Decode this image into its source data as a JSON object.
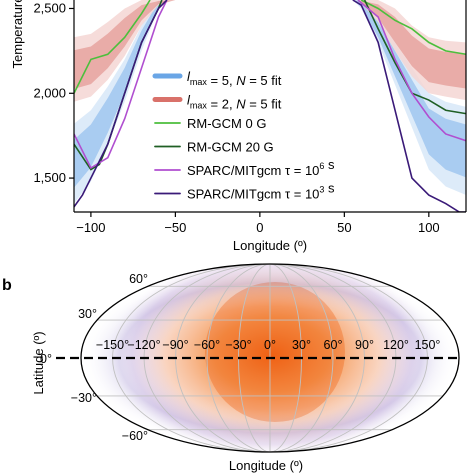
{
  "chart_data": [
    {
      "type": "line",
      "panel_label": "",
      "ylabel": "Temperature",
      "xlabel": "Longitude (º)",
      "xlim": [
        -110,
        122
      ],
      "ylim": [
        1300,
        2550
      ],
      "x_ticks": [
        -100,
        -50,
        0,
        50,
        100
      ],
      "x_tick_labels": [
        "−100",
        "−50",
        "0",
        "50",
        "100"
      ],
      "y_ticks": [
        1500,
        2000,
        2500
      ],
      "y_tick_labels": [
        "1,500",
        "2,000",
        "2,500"
      ],
      "colors": {
        "fit5": "#6aa6e6",
        "fit5_light": "#d7e8f8",
        "fit2": "#d9716a",
        "fit2_light": "#f4d6d3",
        "rm0": "#4cbf3c",
        "rm20": "#1f5f24",
        "sparc6": "#b04fd0",
        "sparc3": "#3a1a78"
      },
      "legend": [
        {
          "key": "fit5",
          "pre": "l",
          "sub": "max",
          "post": " = 5, N = 5 fit"
        },
        {
          "key": "fit2",
          "pre": "l",
          "sub": "max",
          "post": " = 2, N = 5 fit"
        },
        {
          "key": "rm0",
          "text": "RM-GCM 0 G"
        },
        {
          "key": "rm20",
          "text": "RM-GCM 20 G"
        },
        {
          "key": "sparc6",
          "pre": "SPARC/MITgcm τ = 10",
          "sup": "6",
          "post": " s"
        },
        {
          "key": "sparc3",
          "pre": "SPARC/MITgcm τ = 10",
          "sup": "3",
          "post": " s"
        }
      ],
      "series": [
        {
          "key": "fit5",
          "x": [
            -110,
            -100,
            -90,
            -80,
            -70,
            -60,
            -55
          ],
          "lower": [
            1350,
            1480,
            1700,
            1950,
            2250,
            2500,
            2550
          ],
          "upper": [
            1820,
            1900,
            2040,
            2200,
            2400,
            2550,
            2550
          ]
        },
        {
          "key": "fit5",
          "x": [
            55,
            60,
            70,
            80,
            90,
            100,
            110,
            122
          ],
          "lower": [
            2550,
            2500,
            2300,
            2050,
            1800,
            1550,
            1450,
            1400
          ],
          "upper": [
            2550,
            2550,
            2450,
            2300,
            2150,
            2000,
            1950,
            1920
          ]
        },
        {
          "key": "fit2",
          "x": [
            -110,
            -100,
            -90,
            -80,
            -70,
            -60,
            -50
          ],
          "lower": [
            1950,
            1980,
            2080,
            2220,
            2400,
            2520,
            2550
          ],
          "upper": [
            2330,
            2350,
            2420,
            2500,
            2550,
            2550,
            2550
          ]
        },
        {
          "key": "fit2",
          "x": [
            58,
            70,
            80,
            90,
            100,
            110,
            122
          ],
          "lower": [
            2550,
            2420,
            2250,
            2100,
            2000,
            1980,
            1960
          ],
          "upper": [
            2550,
            2550,
            2500,
            2400,
            2330,
            2310,
            2300
          ]
        },
        {
          "key": "rm0",
          "x": [
            -110,
            -100,
            -90,
            -80,
            -70,
            -65
          ],
          "y": [
            2000,
            2200,
            2230,
            2330,
            2470,
            2550
          ]
        },
        {
          "key": "rm0",
          "x": [
            60,
            70,
            80,
            90,
            100,
            110,
            122
          ],
          "y": [
            2550,
            2500,
            2430,
            2380,
            2300,
            2250,
            2230
          ]
        },
        {
          "key": "rm20",
          "x": [
            -110,
            -100,
            -95,
            -90,
            -80,
            -70,
            -60,
            -58
          ],
          "y": [
            1700,
            1550,
            1580,
            1700,
            2000,
            2300,
            2500,
            2550
          ]
        },
        {
          "key": "rm20",
          "x": [
            62,
            70,
            80,
            90,
            100,
            110,
            122
          ],
          "y": [
            2550,
            2380,
            2180,
            2000,
            1960,
            1900,
            1880
          ]
        },
        {
          "key": "sparc6",
          "x": [
            -110,
            -100,
            -90,
            -80,
            -70,
            -60,
            -55
          ],
          "y": [
            1760,
            1560,
            1620,
            1850,
            2150,
            2450,
            2550
          ]
        },
        {
          "key": "sparc6",
          "x": [
            58,
            70,
            80,
            90,
            100,
            110,
            122
          ],
          "y": [
            2550,
            2450,
            2200,
            2000,
            1860,
            1760,
            1720
          ]
        },
        {
          "key": "sparc3",
          "x": [
            -110,
            -105,
            -100,
            -90,
            -80,
            -70,
            -60,
            -55
          ],
          "y": [
            1330,
            1400,
            1500,
            1700,
            2000,
            2300,
            2500,
            2550
          ]
        },
        {
          "key": "sparc3",
          "x": [
            55,
            60,
            70,
            80,
            90,
            100,
            110,
            118,
            122
          ],
          "y": [
            2550,
            2520,
            2300,
            1900,
            1500,
            1400,
            1350,
            1300,
            1300
          ]
        }
      ]
    },
    {
      "type": "heatmap",
      "panel_label": "b",
      "projection": "mollweide",
      "xlabel": "Longitude (º)",
      "ylabel": "Latitude (º)",
      "lon_labels": [
        "−150°",
        "−120°",
        "−90°",
        "−60°",
        "−30°",
        "0°",
        "30°",
        "60°",
        "90°",
        "120°",
        "150°"
      ],
      "lat_labels": [
        "60°",
        "30°",
        "0°",
        "−30°",
        "−60°"
      ],
      "hotspot": {
        "lon": 0,
        "lat": 0
      },
      "equator_line": "dashed",
      "colors": {
        "hot": "#ef5b0c",
        "warm": "#f7a070",
        "cool": "#8a7bc8",
        "grid": "#c0c0c0",
        "frame": "#000000"
      }
    }
  ]
}
